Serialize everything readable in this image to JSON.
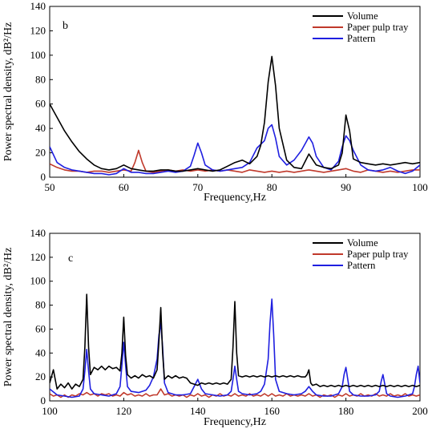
{
  "chart_data": [
    {
      "type": "line",
      "panel_label": "b",
      "xlabel": "Frequency,Hz",
      "ylabel": "Power spectral density, dB²/Hz",
      "xlim": [
        50,
        100
      ],
      "ylim": [
        0,
        140
      ],
      "xticks": [
        50,
        60,
        70,
        80,
        90,
        100
      ],
      "yticks": [
        0,
        20,
        40,
        60,
        80,
        100,
        120,
        140
      ],
      "grid": false,
      "legend_position": "top-right",
      "series": [
        {
          "name": "Volume",
          "color": "#000000",
          "x": [
            50,
            51,
            52,
            53,
            54,
            55,
            56,
            57,
            58,
            59,
            60,
            61,
            62,
            63,
            64,
            65,
            66,
            67,
            68,
            69,
            70,
            71,
            72,
            73,
            74,
            75,
            76,
            77,
            78,
            78.5,
            79,
            79.5,
            80,
            80.5,
            81,
            82,
            83,
            84,
            85,
            86,
            87,
            88,
            89,
            89.5,
            90,
            90.5,
            91,
            92,
            93,
            94,
            95,
            96,
            97,
            98,
            99,
            100
          ],
          "y": [
            60,
            49,
            38,
            29,
            21,
            15,
            10,
            7,
            6,
            7,
            10,
            7,
            6,
            5,
            5,
            6,
            6,
            5,
            5,
            6,
            7,
            6,
            5,
            6,
            9,
            12,
            14,
            11,
            17,
            26,
            45,
            78,
            99,
            75,
            40,
            14,
            8,
            7,
            19,
            10,
            8,
            7,
            10,
            20,
            51,
            38,
            15,
            12,
            11,
            10,
            11,
            10,
            11,
            12,
            11,
            12
          ]
        },
        {
          "name": "Paper pulp tray",
          "color": "#c0392b",
          "x": [
            50,
            51,
            52,
            53,
            54,
            55,
            56,
            57,
            58,
            59,
            60,
            61,
            61.5,
            62,
            62.5,
            63,
            64,
            65,
            66,
            67,
            68,
            69,
            70,
            71,
            72,
            73,
            74,
            75,
            76,
            77,
            78,
            79,
            80,
            81,
            82,
            83,
            84,
            85,
            86,
            87,
            88,
            89,
            90,
            91,
            92,
            93,
            94,
            95,
            96,
            97,
            98,
            99,
            100
          ],
          "y": [
            11,
            8,
            6,
            5,
            5,
            4,
            5,
            5,
            4,
            5,
            6,
            5,
            12,
            22,
            12,
            5,
            4,
            5,
            6,
            5,
            6,
            5,
            6,
            5,
            6,
            5,
            6,
            5,
            4,
            6,
            5,
            4,
            5,
            4,
            5,
            4,
            5,
            6,
            5,
            4,
            5,
            6,
            7,
            5,
            4,
            6,
            5,
            4,
            5,
            4,
            5,
            6,
            6
          ]
        },
        {
          "name": "Pattern",
          "color": "#1f1fe0",
          "x": [
            50,
            51,
            52,
            53,
            54,
            55,
            56,
            57,
            58,
            59,
            60,
            61,
            62,
            63,
            64,
            65,
            66,
            67,
            68,
            69,
            69.5,
            70,
            70.5,
            71,
            72,
            73,
            74,
            75,
            76,
            77,
            78,
            79,
            79.5,
            80,
            80.5,
            81,
            82,
            83,
            84,
            85,
            85.5,
            86,
            87,
            88,
            89,
            89.5,
            90,
            90.5,
            91,
            92,
            93,
            94,
            95,
            96,
            97,
            98,
            99,
            100
          ],
          "y": [
            25,
            12,
            8,
            6,
            5,
            4,
            3,
            3,
            2,
            3,
            7,
            4,
            4,
            3,
            3,
            4,
            5,
            4,
            5,
            9,
            18,
            28,
            20,
            10,
            6,
            5,
            6,
            7,
            8,
            12,
            24,
            30,
            40,
            43,
            32,
            17,
            10,
            14,
            22,
            33,
            28,
            17,
            8,
            6,
            13,
            25,
            34,
            30,
            22,
            10,
            6,
            5,
            6,
            8,
            5,
            3,
            5,
            10
          ]
        }
      ]
    },
    {
      "type": "line",
      "panel_label": "c",
      "xlabel": "Frequency,Hz",
      "ylabel": "Power spectral density, dB²/Hz",
      "xlim": [
        100,
        200
      ],
      "ylim": [
        0,
        140
      ],
      "xticks": [
        100,
        120,
        140,
        160,
        180,
        200
      ],
      "yticks": [
        0,
        20,
        40,
        60,
        80,
        100,
        120,
        140
      ],
      "grid": false,
      "legend_position": "top-right",
      "series": [
        {
          "name": "Volume",
          "color": "#000000",
          "x": [
            100,
            101,
            102,
            103,
            104,
            105,
            106,
            107,
            108,
            109,
            109.5,
            110,
            110.5,
            111,
            112,
            113,
            114,
            115,
            116,
            117,
            118,
            119,
            119.5,
            120,
            120.5,
            121,
            122,
            123,
            124,
            125,
            126,
            127,
            128,
            129,
            129.5,
            130,
            130.5,
            131,
            132,
            133,
            134,
            135,
            136,
            137,
            138,
            139,
            140,
            141,
            142,
            143,
            144,
            145,
            146,
            147,
            148,
            149,
            149.5,
            150,
            150.5,
            151,
            152,
            153,
            154,
            155,
            156,
            157,
            158,
            159,
            160,
            161,
            162,
            163,
            164,
            165,
            166,
            167,
            168,
            169,
            169.5,
            170,
            170.5,
            171,
            172,
            173,
            174,
            175,
            176,
            177,
            178,
            179,
            180,
            181,
            182,
            183,
            184,
            185,
            186,
            187,
            188,
            189,
            190,
            191,
            192,
            193,
            194,
            195,
            196,
            197,
            198,
            199,
            200
          ],
          "y": [
            15,
            26,
            10,
            14,
            11,
            15,
            10,
            14,
            12,
            18,
            45,
            89,
            45,
            22,
            28,
            26,
            29,
            26,
            29,
            27,
            28,
            25,
            40,
            70,
            38,
            22,
            19,
            21,
            19,
            22,
            20,
            21,
            19,
            26,
            50,
            78,
            40,
            18,
            21,
            19,
            21,
            19,
            20,
            19,
            15,
            14,
            13,
            15,
            14,
            15,
            14,
            15,
            14,
            15,
            14,
            18,
            45,
            83,
            40,
            21,
            20,
            21,
            20,
            21,
            20,
            21,
            20,
            21,
            20,
            21,
            20,
            21,
            20,
            21,
            20,
            21,
            20,
            20,
            22,
            26,
            15,
            13,
            14,
            12,
            13,
            12,
            13,
            12,
            13,
            12,
            13,
            12,
            13,
            12,
            13,
            12,
            13,
            12,
            13,
            12,
            13,
            12,
            13,
            12,
            13,
            12,
            13,
            12,
            13,
            12,
            13
          ]
        },
        {
          "name": "Paper pulp tray",
          "color": "#c0392b",
          "x": [
            100,
            101,
            102,
            103,
            104,
            105,
            106,
            107,
            108,
            109,
            110,
            111,
            112,
            113,
            114,
            115,
            116,
            117,
            118,
            119,
            120,
            121,
            122,
            123,
            124,
            125,
            126,
            127,
            128,
            129,
            130,
            131,
            132,
            133,
            134,
            135,
            136,
            137,
            138,
            139,
            140,
            141,
            142,
            143,
            144,
            145,
            146,
            147,
            148,
            149,
            150,
            151,
            152,
            153,
            154,
            155,
            156,
            157,
            158,
            159,
            160,
            161,
            162,
            163,
            164,
            165,
            166,
            167,
            168,
            169,
            170,
            171,
            172,
            173,
            174,
            175,
            176,
            177,
            178,
            179,
            180,
            181,
            182,
            183,
            184,
            185,
            186,
            187,
            188,
            189,
            190,
            191,
            192,
            193,
            194,
            195,
            196,
            197,
            198,
            199,
            200
          ],
          "y": [
            6,
            4,
            5,
            3,
            5,
            3,
            5,
            4,
            6,
            5,
            7,
            5,
            6,
            4,
            6,
            5,
            6,
            4,
            5,
            4,
            7,
            5,
            6,
            4,
            5,
            4,
            6,
            4,
            5,
            5,
            10,
            5,
            6,
            4,
            5,
            4,
            5,
            3,
            5,
            4,
            6,
            4,
            5,
            3,
            5,
            4,
            6,
            4,
            5,
            4,
            6,
            4,
            5,
            4,
            6,
            4,
            5,
            4,
            6,
            4,
            6,
            4,
            5,
            4,
            6,
            4,
            5,
            4,
            5,
            4,
            6,
            4,
            5,
            3,
            5,
            4,
            5,
            3,
            5,
            4,
            6,
            4,
            5,
            4,
            6,
            4,
            5,
            4,
            6,
            4,
            5,
            4,
            6,
            4,
            5,
            4,
            6,
            4,
            5,
            4,
            5
          ]
        },
        {
          "name": "Pattern",
          "color": "#1f1fe0",
          "x": [
            100,
            102,
            104,
            106,
            108,
            109,
            109.5,
            110,
            110.5,
            111,
            112,
            114,
            116,
            118,
            119,
            119.5,
            120,
            120.5,
            121,
            122,
            124,
            126,
            127,
            128,
            129,
            129.5,
            130,
            130.5,
            131,
            132,
            134,
            136,
            138,
            139,
            140,
            141,
            142,
            144,
            146,
            148,
            149,
            149.5,
            150,
            150.5,
            151,
            152,
            154,
            156,
            157,
            158,
            159,
            159.5,
            160,
            160.5,
            161,
            162,
            164,
            166,
            168,
            169,
            170,
            171,
            172,
            174,
            176,
            178,
            179,
            179.5,
            180,
            180.5,
            181,
            182,
            184,
            186,
            188,
            189,
            189.5,
            190,
            190.5,
            191,
            192,
            194,
            196,
            198,
            198.5,
            199,
            199.5,
            200
          ],
          "y": [
            10,
            5,
            4,
            3,
            4,
            10,
            25,
            43,
            25,
            10,
            6,
            5,
            4,
            6,
            12,
            30,
            49,
            30,
            12,
            8,
            7,
            9,
            13,
            20,
            35,
            55,
            65,
            45,
            15,
            7,
            5,
            5,
            6,
            12,
            18,
            10,
            6,
            5,
            4,
            5,
            8,
            18,
            29,
            18,
            8,
            6,
            5,
            6,
            8,
            14,
            35,
            65,
            85,
            55,
            18,
            8,
            6,
            5,
            6,
            8,
            12,
            8,
            5,
            4,
            4,
            6,
            12,
            22,
            28,
            18,
            8,
            5,
            4,
            4,
            5,
            8,
            16,
            22,
            14,
            6,
            4,
            3,
            4,
            6,
            12,
            22,
            29,
            15
          ]
        }
      ]
    }
  ]
}
